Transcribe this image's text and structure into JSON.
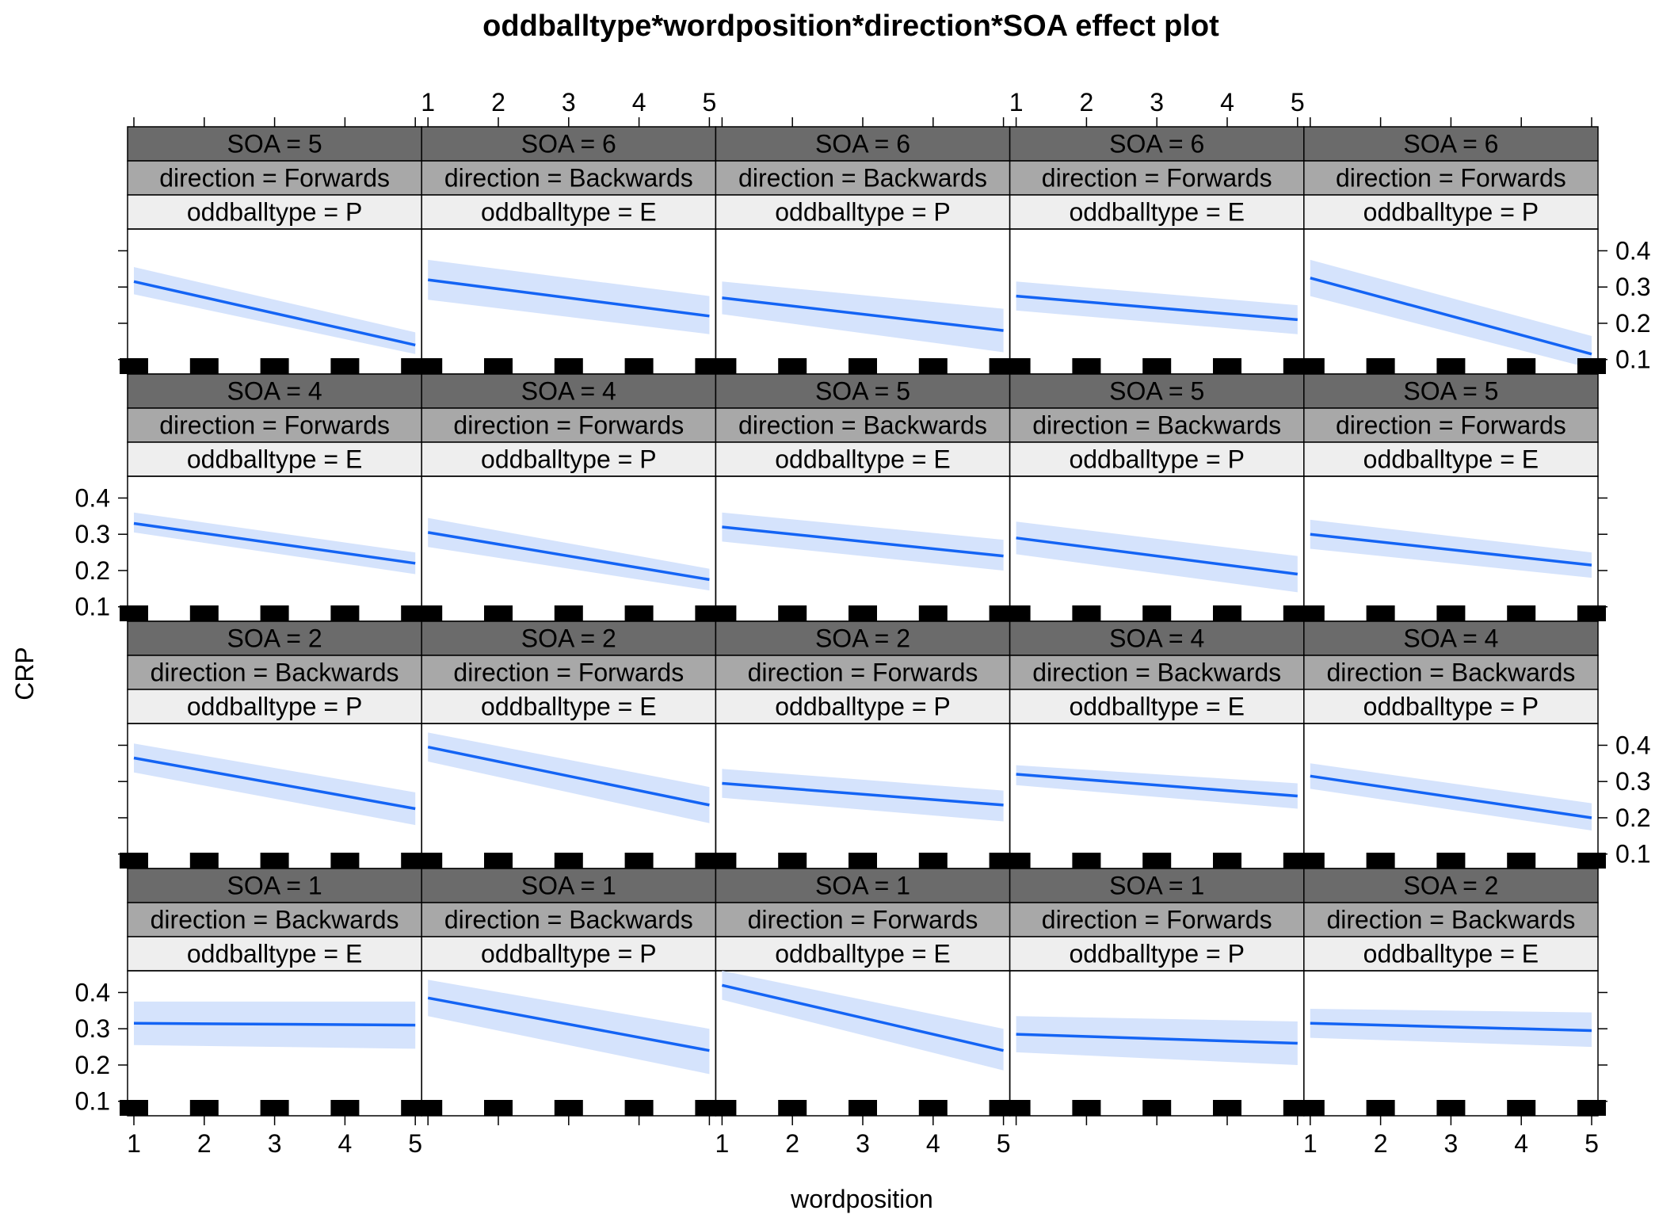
{
  "chart_data": {
    "type": "line",
    "title": "oddballtype*wordposition*direction*SOA effect plot",
    "xlabel": "wordposition",
    "ylabel": "CRP",
    "x_ticks": [
      "1",
      "2",
      "3",
      "4",
      "5"
    ],
    "y_ticks": [
      "0.1",
      "0.2",
      "0.3",
      "0.4"
    ],
    "xlim": [
      1,
      5
    ],
    "ylim": [
      0.06,
      0.46
    ],
    "grid": false,
    "layout": "4 rows x 5 columns",
    "colors": {
      "line": "#1464f4",
      "band": "#d5e3fc",
      "strip_soa": "#6b6b6b",
      "strip_direction": "#a8a8a8",
      "strip_oddball": "#eeeeee",
      "rug": "#000000"
    },
    "panels": [
      {
        "soa": "SOA = 5",
        "direction": "direction = Forwards",
        "oddballtype": "oddballtype = P",
        "y": [
          0.315,
          0.14
        ],
        "lo": [
          0.28,
          0.115
        ],
        "hi": [
          0.355,
          0.175
        ]
      },
      {
        "soa": "SOA = 6",
        "direction": "direction = Backwards",
        "oddballtype": "oddballtype = E",
        "y": [
          0.32,
          0.22
        ],
        "lo": [
          0.265,
          0.17
        ],
        "hi": [
          0.375,
          0.275
        ]
      },
      {
        "soa": "SOA = 6",
        "direction": "direction = Backwards",
        "oddballtype": "oddballtype = P",
        "y": [
          0.27,
          0.18
        ],
        "lo": [
          0.225,
          0.12
        ],
        "hi": [
          0.315,
          0.24
        ]
      },
      {
        "soa": "SOA = 6",
        "direction": "direction = Forwards",
        "oddballtype": "oddballtype = E",
        "y": [
          0.275,
          0.21
        ],
        "lo": [
          0.235,
          0.17
        ],
        "hi": [
          0.315,
          0.25
        ]
      },
      {
        "soa": "SOA = 6",
        "direction": "direction = Forwards",
        "oddballtype": "oddballtype = P",
        "y": [
          0.325,
          0.115
        ],
        "lo": [
          0.275,
          0.075
        ],
        "hi": [
          0.375,
          0.165
        ]
      },
      {
        "soa": "SOA = 4",
        "direction": "direction = Forwards",
        "oddballtype": "oddballtype = E",
        "y": [
          0.33,
          0.22
        ],
        "lo": [
          0.305,
          0.19
        ],
        "hi": [
          0.36,
          0.25
        ]
      },
      {
        "soa": "SOA = 4",
        "direction": "direction = Forwards",
        "oddballtype": "oddballtype = P",
        "y": [
          0.305,
          0.175
        ],
        "lo": [
          0.265,
          0.145
        ],
        "hi": [
          0.345,
          0.205
        ]
      },
      {
        "soa": "SOA = 5",
        "direction": "direction = Backwards",
        "oddballtype": "oddballtype = E",
        "y": [
          0.32,
          0.24
        ],
        "lo": [
          0.28,
          0.2
        ],
        "hi": [
          0.36,
          0.285
        ]
      },
      {
        "soa": "SOA = 5",
        "direction": "direction = Backwards",
        "oddballtype": "oddballtype = P",
        "y": [
          0.29,
          0.19
        ],
        "lo": [
          0.245,
          0.14
        ],
        "hi": [
          0.335,
          0.24
        ]
      },
      {
        "soa": "SOA = 5",
        "direction": "direction = Forwards",
        "oddballtype": "oddballtype = E",
        "y": [
          0.3,
          0.215
        ],
        "lo": [
          0.26,
          0.18
        ],
        "hi": [
          0.34,
          0.25
        ]
      },
      {
        "soa": "SOA = 2",
        "direction": "direction = Backwards",
        "oddballtype": "oddballtype = P",
        "y": [
          0.365,
          0.225
        ],
        "lo": [
          0.325,
          0.18
        ],
        "hi": [
          0.405,
          0.27
        ]
      },
      {
        "soa": "SOA = 2",
        "direction": "direction = Forwards",
        "oddballtype": "oddballtype = E",
        "y": [
          0.395,
          0.235
        ],
        "lo": [
          0.355,
          0.185
        ],
        "hi": [
          0.435,
          0.285
        ]
      },
      {
        "soa": "SOA = 2",
        "direction": "direction = Forwards",
        "oddballtype": "oddballtype = P",
        "y": [
          0.295,
          0.235
        ],
        "lo": [
          0.255,
          0.19
        ],
        "hi": [
          0.335,
          0.275
        ]
      },
      {
        "soa": "SOA = 4",
        "direction": "direction = Backwards",
        "oddballtype": "oddballtype = E",
        "y": [
          0.32,
          0.26
        ],
        "lo": [
          0.29,
          0.225
        ],
        "hi": [
          0.345,
          0.295
        ]
      },
      {
        "soa": "SOA = 4",
        "direction": "direction = Backwards",
        "oddballtype": "oddballtype = P",
        "y": [
          0.315,
          0.2
        ],
        "lo": [
          0.28,
          0.165
        ],
        "hi": [
          0.35,
          0.24
        ]
      },
      {
        "soa": "SOA = 1",
        "direction": "direction = Backwards",
        "oddballtype": "oddballtype = E",
        "y": [
          0.315,
          0.31
        ],
        "lo": [
          0.255,
          0.245
        ],
        "hi": [
          0.375,
          0.375
        ]
      },
      {
        "soa": "SOA = 1",
        "direction": "direction = Backwards",
        "oddballtype": "oddballtype = P",
        "y": [
          0.385,
          0.24
        ],
        "lo": [
          0.335,
          0.175
        ],
        "hi": [
          0.435,
          0.3
        ]
      },
      {
        "soa": "SOA = 1",
        "direction": "direction = Forwards",
        "oddballtype": "oddballtype = E",
        "y": [
          0.42,
          0.24
        ],
        "lo": [
          0.38,
          0.185
        ],
        "hi": [
          0.46,
          0.3
        ]
      },
      {
        "soa": "SOA = 1",
        "direction": "direction = Forwards",
        "oddballtype": "oddballtype = P",
        "y": [
          0.285,
          0.26
        ],
        "lo": [
          0.235,
          0.2
        ],
        "hi": [
          0.335,
          0.32
        ]
      },
      {
        "soa": "SOA = 2",
        "direction": "direction = Backwards",
        "oddballtype": "oddballtype = E",
        "y": [
          0.315,
          0.295
        ],
        "lo": [
          0.275,
          0.25
        ],
        "hi": [
          0.355,
          0.345
        ]
      }
    ]
  }
}
